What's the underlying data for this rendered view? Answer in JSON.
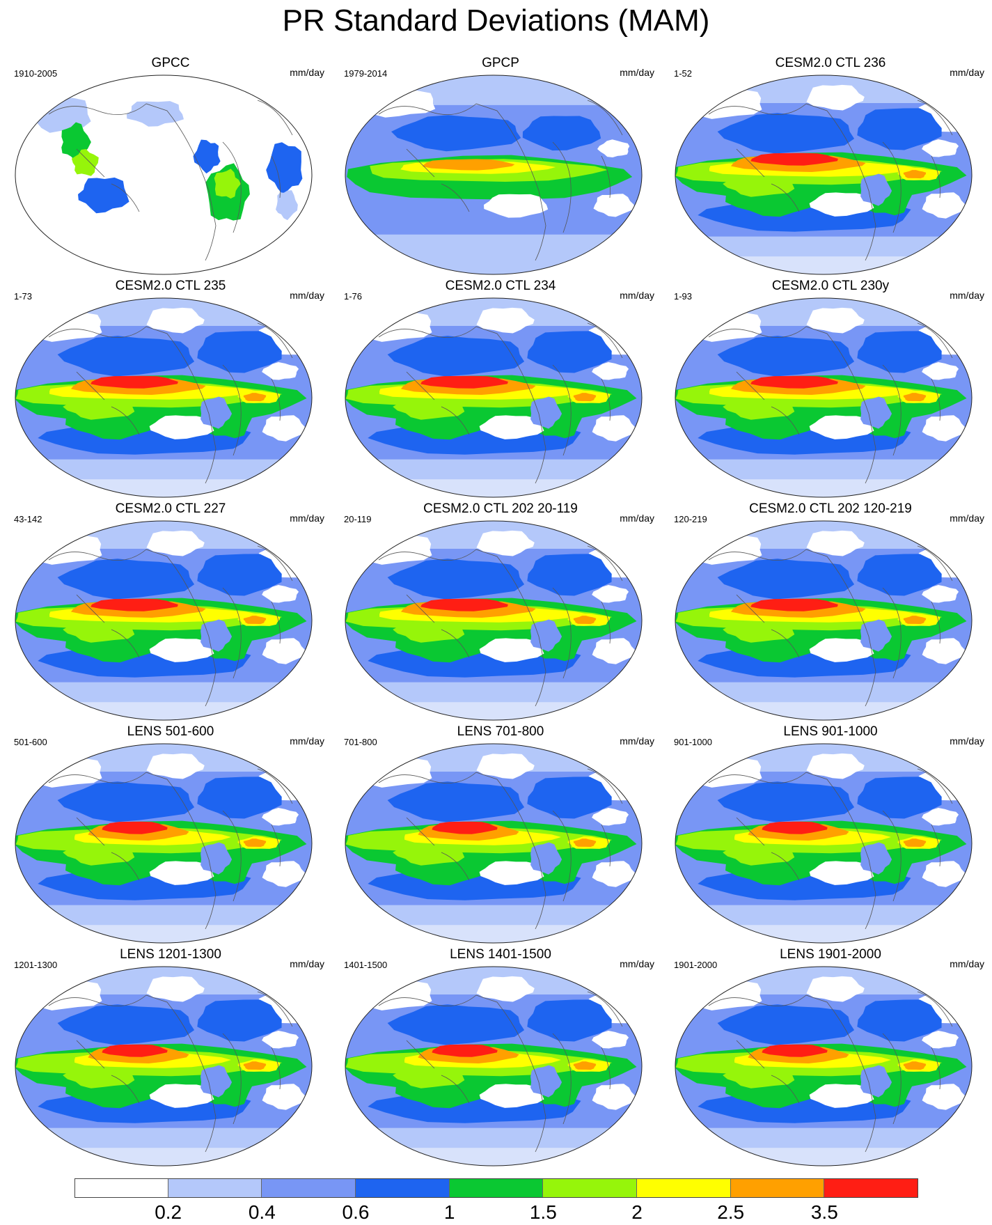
{
  "title": "PR Standard Deviations (MAM)",
  "units": "mm/day",
  "colorbar": {
    "colors": [
      "#ffffff",
      "#b4c8fa",
      "#7896f5",
      "#1e64f0",
      "#0ac832",
      "#96f50a",
      "#ffff00",
      "#ffa000",
      "#ff1e14"
    ],
    "labels": [
      "0.2",
      "0.4",
      "0.6",
      "1",
      "1.5",
      "2",
      "2.5",
      "3.5"
    ]
  },
  "panels": [
    {
      "title": "GPCC",
      "period": "1910-2005"
    },
    {
      "title": "GPCP",
      "period": "1979-2014"
    },
    {
      "title": "CESM2.0 CTL 236",
      "period": "1-52"
    },
    {
      "title": "CESM2.0 CTL 235",
      "period": "1-73"
    },
    {
      "title": "CESM2.0 CTL 234",
      "period": "1-76"
    },
    {
      "title": "CESM2.0 CTL 230y",
      "period": "1-93"
    },
    {
      "title": "CESM2.0 CTL 227",
      "period": "43-142"
    },
    {
      "title": "CESM2.0 CTL 202 20-119",
      "period": "20-119"
    },
    {
      "title": "CESM2.0 CTL 202 120-219",
      "period": "120-219"
    },
    {
      "title": "LENS 501-600",
      "period": "501-600"
    },
    {
      "title": "LENS 701-800",
      "period": "701-800"
    },
    {
      "title": "LENS 901-1000",
      "period": "901-1000"
    },
    {
      "title": "LENS 1201-1300",
      "period": "1201-1300"
    },
    {
      "title": "LENS 1401-1500",
      "period": "1401-1500"
    },
    {
      "title": "LENS 1901-2000",
      "period": "1901-2000"
    }
  ]
}
